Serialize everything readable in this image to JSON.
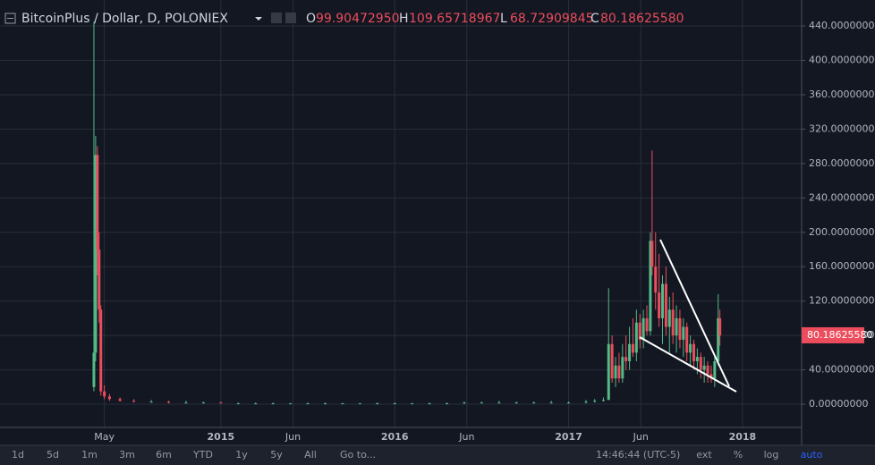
{
  "chart_data": {
    "type": "candlestick",
    "title": "BitcoinPlus / Dollar, D, POLONIEX",
    "ohlc_legend": [
      {
        "name": "O",
        "value": 99.9047295,
        "label": "99.90472950"
      },
      {
        "name": "H",
        "value": 109.65718967,
        "label": "109.65718967"
      },
      {
        "name": "L",
        "value": 68.72909845,
        "label": "68.72909845"
      },
      {
        "name": "C",
        "value": 80.1862558,
        "label": "80.18625580"
      }
    ],
    "last_price": {
      "value": 80.1862558,
      "label": "80.18625580"
    },
    "up_color": "#53b987",
    "down_color": "#eb4d5c",
    "x": [
      2014.27,
      2014.28,
      2014.29,
      2014.3,
      2014.31,
      2014.33,
      2014.36,
      2014.42,
      2014.5,
      2014.6,
      2014.7,
      2014.8,
      2014.9,
      2015.0,
      2015.1,
      2015.2,
      2015.3,
      2015.4,
      2015.5,
      2015.6,
      2015.7,
      2015.8,
      2015.9,
      2016.0,
      2016.1,
      2016.2,
      2016.3,
      2016.4,
      2016.5,
      2016.6,
      2016.7,
      2016.8,
      2016.9,
      2017.0,
      2017.1,
      2017.15,
      2017.2,
      2017.23,
      2017.25,
      2017.27,
      2017.29,
      2017.31,
      2017.33,
      2017.35,
      2017.37,
      2017.39,
      2017.41,
      2017.43,
      2017.45,
      2017.47,
      2017.48,
      2017.5,
      2017.52,
      2017.54,
      2017.56,
      2017.58,
      2017.6,
      2017.62,
      2017.64,
      2017.66,
      2017.68,
      2017.7,
      2017.72,
      2017.74,
      2017.76,
      2017.78,
      2017.8,
      2017.82,
      2017.84,
      2017.86,
      2017.87
    ],
    "open": [
      20,
      60,
      290,
      180,
      110,
      15,
      9,
      6,
      4,
      3,
      3,
      2,
      2,
      2,
      1,
      1,
      1,
      1,
      1,
      1,
      1,
      1,
      1,
      1,
      1,
      1,
      1,
      1,
      2,
      2,
      2,
      2,
      2,
      2,
      2,
      3,
      4,
      5,
      70,
      30,
      45,
      30,
      55,
      50,
      70,
      60,
      95,
      75,
      100,
      85,
      190,
      160,
      130,
      100,
      140,
      90,
      110,
      80,
      100,
      75,
      90,
      60,
      70,
      50,
      55,
      40,
      45,
      35,
      30,
      50,
      100
    ],
    "high": [
      445,
      312,
      300,
      200,
      115,
      22,
      12,
      8,
      6,
      5,
      4,
      4,
      3,
      3,
      2,
      2,
      2,
      1.5,
      2,
      2,
      1.5,
      1.5,
      2,
      2,
      1.5,
      2,
      2,
      3,
      3,
      4,
      3,
      3,
      4,
      3,
      5,
      6,
      8,
      135,
      80,
      55,
      60,
      70,
      80,
      90,
      100,
      110,
      105,
      110,
      115,
      200,
      295,
      200,
      175,
      150,
      160,
      125,
      130,
      115,
      110,
      100,
      95,
      80,
      75,
      65,
      60,
      55,
      50,
      45,
      55,
      128,
      110
    ],
    "low": [
      15,
      50,
      150,
      95,
      10,
      6,
      4,
      3,
      2,
      2,
      1,
      1,
      1,
      1,
      1,
      0.5,
      0.5,
      0.5,
      0.5,
      0.5,
      0.5,
      0.5,
      0.5,
      0.5,
      0.5,
      0.5,
      0.5,
      0.5,
      1,
      1,
      1,
      1,
      1,
      1,
      1,
      2,
      3,
      5,
      25,
      20,
      25,
      25,
      40,
      40,
      55,
      50,
      65,
      65,
      80,
      80,
      150,
      110,
      90,
      70,
      80,
      60,
      70,
      60,
      65,
      55,
      50,
      45,
      40,
      35,
      30,
      25,
      25,
      25,
      20,
      45,
      68
    ],
    "close": [
      60,
      290,
      180,
      110,
      15,
      9,
      6,
      4,
      3,
      3,
      2,
      2,
      2,
      1,
      1,
      1,
      1,
      1,
      1,
      1,
      1,
      1,
      1,
      1,
      1,
      1,
      1,
      2,
      2,
      2,
      2,
      2,
      2,
      2,
      3,
      4,
      5,
      70,
      30,
      45,
      30,
      55,
      50,
      70,
      60,
      95,
      75,
      100,
      85,
      190,
      160,
      130,
      100,
      140,
      90,
      110,
      80,
      100,
      75,
      90,
      60,
      70,
      50,
      55,
      40,
      45,
      35,
      30,
      50,
      100,
      80
    ],
    "xlim": [
      2013.73,
      2018.34
    ],
    "xticks": [
      {
        "value": 2014.33,
        "label": "May"
      },
      {
        "value": 2015,
        "label": "2015"
      },
      {
        "value": 2015.415,
        "label": "Jun"
      },
      {
        "value": 2016,
        "label": "2016"
      },
      {
        "value": 2016.415,
        "label": "Jun"
      },
      {
        "value": 2017,
        "label": "2017"
      },
      {
        "value": 2017.415,
        "label": "Jun"
      },
      {
        "value": 2018,
        "label": "2018"
      }
    ],
    "ylim": [
      -27,
      470.2
    ],
    "yticks": [
      {
        "value": 0,
        "label": "0.00000000"
      },
      {
        "value": 40,
        "label": "40.00000000"
      },
      {
        "value": 80,
        "label": "80.00000000"
      },
      {
        "value": 120,
        "label": "120.00000000"
      },
      {
        "value": 160,
        "label": "160.00000000"
      },
      {
        "value": 200,
        "label": "200.00000000"
      },
      {
        "value": 240,
        "label": "240.00000000"
      },
      {
        "value": 280,
        "label": "280.00000000"
      },
      {
        "value": 320,
        "label": "320.00000000"
      },
      {
        "value": 360,
        "label": "360.00000000"
      },
      {
        "value": 400,
        "label": "400.00000000"
      },
      {
        "value": 440,
        "label": "440.00000000"
      }
    ],
    "grid": true
  },
  "toolbar": {
    "ranges": [
      "1d",
      "5d",
      "1m",
      "3m",
      "6m",
      "YTD",
      "1y",
      "5y",
      "All"
    ],
    "goto": "Go to...",
    "time": "14:46:44 (UTC-5)",
    "options": [
      "ext",
      "%",
      "log",
      "auto"
    ]
  }
}
